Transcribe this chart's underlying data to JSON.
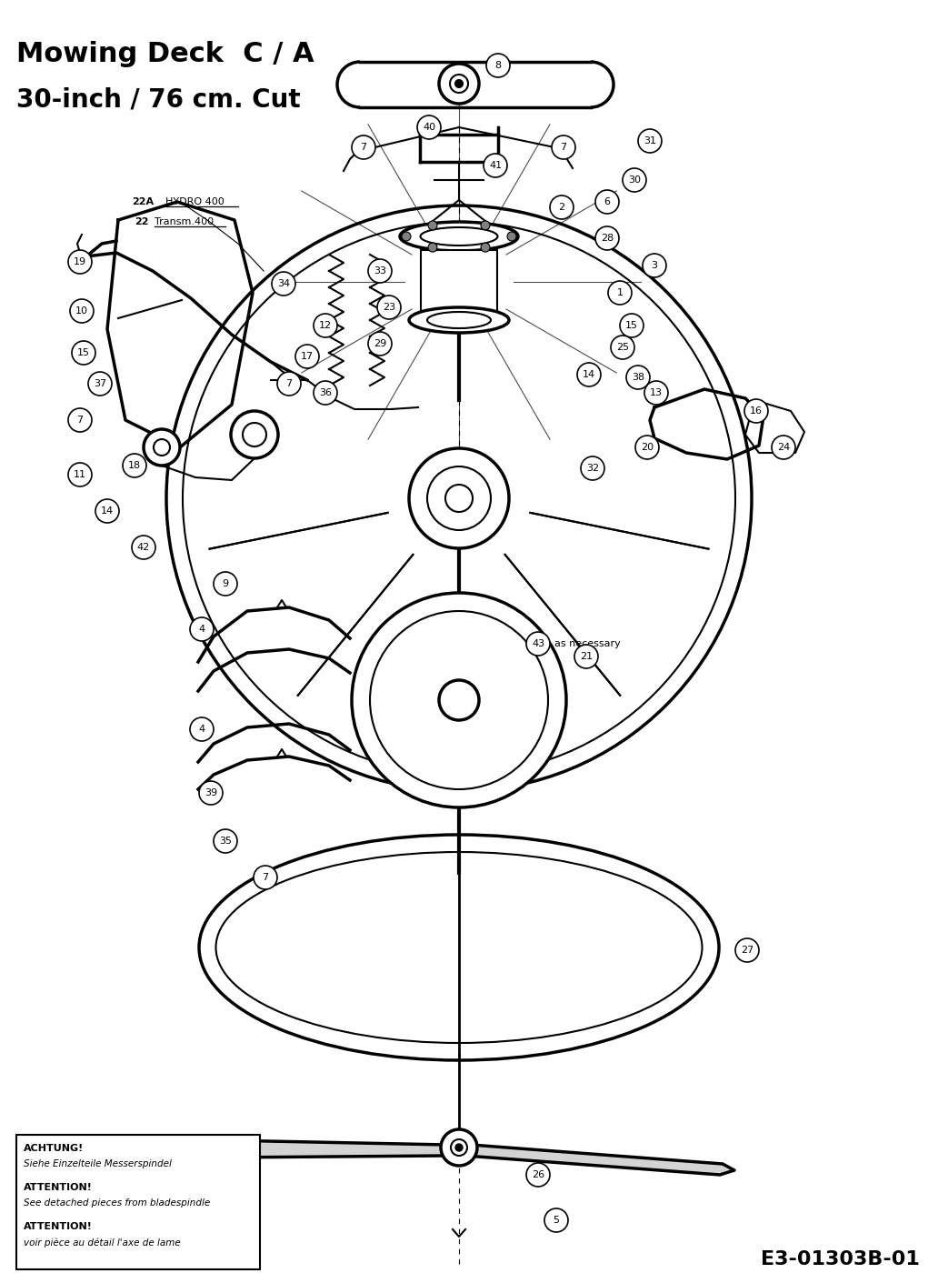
{
  "title_line1": "Mowing Deck  C / A",
  "title_line2": "30-inch / 76 cm. Cut",
  "warning_box": {
    "line1_bold": "ACHTUNG!",
    "line2": "Siehe Einzelteile Messerspindel",
    "line3_bold": "ATTENTION!",
    "line4": "See detached pieces from bladespindle",
    "line5_bold": "ATTENTION!",
    "line6": "voir pièce au détail l'axe de lame"
  },
  "part_code": "E3-01303B-01",
  "background_color": "#ffffff",
  "text_color": "#000000"
}
